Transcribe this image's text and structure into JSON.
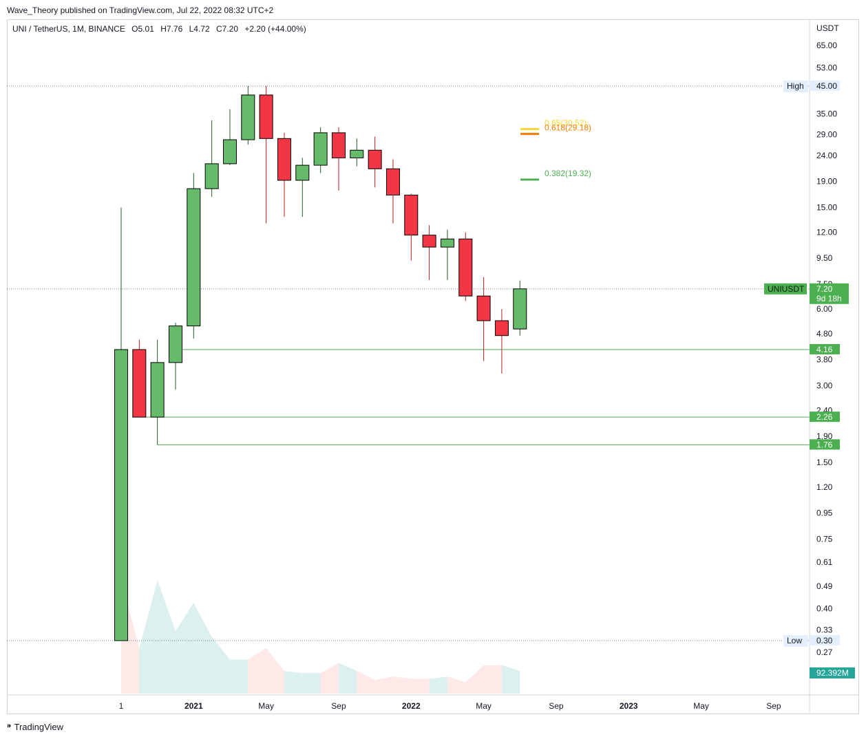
{
  "attribution": "Wave_Theory published on TradingView.com, Jul 22, 2022 08:32 UTC+2",
  "legend": {
    "symbol": "UNI / TetherUS, 1M, BINANCE",
    "open": "O5.01",
    "high": "H7.76",
    "low": "L4.72",
    "close": "C7.20",
    "change": "+2.20 (+44.00%)"
  },
  "currency": "USDT",
  "footer_brand": "TradingView",
  "colors": {
    "up": "#66bb6a",
    "down": "#f23645",
    "level_line": "#4caf50",
    "fib_065": "#fdd835",
    "fib_0618": "#f57c00",
    "fib_0382": "#4caf50",
    "volume_up": "#b2dfdb",
    "volume_down": "#fccbcd",
    "volume_badge": "#26a69a"
  },
  "chart_data": {
    "type": "candlestick",
    "scale": "log",
    "ylim": [
      0.21,
      80
    ],
    "y_ticks": [
      "65.00",
      "53.00",
      "45.00",
      "35.00",
      "29.00",
      "24.00",
      "19.00",
      "15.00",
      "12.00",
      "9.50",
      "7.50",
      "6.00",
      "4.80",
      "3.80",
      "3.00",
      "2.40",
      "1.90",
      "1.50",
      "1.20",
      "0.95",
      "0.75",
      "0.61",
      "0.49",
      "0.40",
      "0.33",
      "0.27"
    ],
    "x_ticks": [
      {
        "label": "1",
        "month_index": 0
      },
      {
        "label": "2021",
        "month_index": 4,
        "bold": true
      },
      {
        "label": "May",
        "month_index": 8
      },
      {
        "label": "Sep",
        "month_index": 12
      },
      {
        "label": "2022",
        "month_index": 16,
        "bold": true
      },
      {
        "label": "May",
        "month_index": 20
      },
      {
        "label": "Sep",
        "month_index": 24
      },
      {
        "label": "2023",
        "month_index": 28,
        "bold": true
      },
      {
        "label": "May",
        "month_index": 32
      },
      {
        "label": "Sep",
        "month_index": 36
      }
    ],
    "candles": [
      {
        "month": "2020-09",
        "open": 0.3,
        "high": 15.0,
        "low": 0.3,
        "close": 4.16
      },
      {
        "month": "2020-10",
        "open": 4.16,
        "high": 4.55,
        "low": 2.26,
        "close": 2.26
      },
      {
        "month": "2020-11",
        "open": 2.26,
        "high": 4.55,
        "low": 1.76,
        "close": 3.7
      },
      {
        "month": "2020-12",
        "open": 3.7,
        "high": 5.3,
        "low": 2.9,
        "close": 5.15
      },
      {
        "month": "2021-01",
        "open": 5.15,
        "high": 20.5,
        "low": 4.6,
        "close": 17.8
      },
      {
        "month": "2021-02",
        "open": 17.8,
        "high": 33.0,
        "low": 16.5,
        "close": 22.3
      },
      {
        "month": "2021-03",
        "open": 22.3,
        "high": 36.5,
        "low": 22.0,
        "close": 27.7
      },
      {
        "month": "2021-04",
        "open": 27.7,
        "high": 45.0,
        "low": 26.5,
        "close": 41.5
      },
      {
        "month": "2021-05",
        "open": 41.5,
        "high": 45.0,
        "low": 13.0,
        "close": 28.0
      },
      {
        "month": "2021-06",
        "open": 28.0,
        "high": 29.5,
        "low": 13.8,
        "close": 19.2
      },
      {
        "month": "2021-07",
        "open": 19.2,
        "high": 23.5,
        "low": 13.8,
        "close": 22.0
      },
      {
        "month": "2021-08",
        "open": 22.0,
        "high": 31.0,
        "low": 20.5,
        "close": 29.5
      },
      {
        "month": "2021-09",
        "open": 29.5,
        "high": 31.0,
        "low": 17.5,
        "close": 23.5
      },
      {
        "month": "2021-10",
        "open": 23.5,
        "high": 28.0,
        "low": 21.8,
        "close": 25.2
      },
      {
        "month": "2021-11",
        "open": 25.2,
        "high": 28.5,
        "low": 18.0,
        "close": 21.3
      },
      {
        "month": "2021-12",
        "open": 21.3,
        "high": 23.2,
        "low": 13.0,
        "close": 16.8
      },
      {
        "month": "2022-01",
        "open": 16.8,
        "high": 17.0,
        "low": 9.3,
        "close": 11.7
      },
      {
        "month": "2022-02",
        "open": 11.7,
        "high": 12.8,
        "low": 7.8,
        "close": 10.5
      },
      {
        "month": "2022-03",
        "open": 10.5,
        "high": 12.3,
        "low": 7.8,
        "close": 11.3
      },
      {
        "month": "2022-04",
        "open": 11.3,
        "high": 12.0,
        "low": 6.45,
        "close": 6.75
      },
      {
        "month": "2022-05",
        "open": 6.75,
        "high": 8.0,
        "low": 3.75,
        "close": 5.4
      },
      {
        "month": "2022-06",
        "open": 5.4,
        "high": 6.0,
        "low": 3.35,
        "close": 4.72
      },
      {
        "month": "2022-07",
        "open": 5.01,
        "high": 7.76,
        "low": 4.72,
        "close": 7.2
      }
    ],
    "volume_shown": "92.392M",
    "volume": [
      100,
      40,
      100,
      55,
      80,
      50,
      30,
      30,
      40,
      20,
      18,
      18,
      27,
      20,
      12,
      15,
      13,
      13,
      15,
      10,
      25,
      25,
      20
    ],
    "horizontal_levels": [
      {
        "label": "High",
        "value": "45.00",
        "style": "dotted"
      },
      {
        "label": "Low",
        "value": "0.30",
        "style": "dotted"
      },
      {
        "label": "UNIUSDT",
        "value": "7.20",
        "extra": "9d 18h",
        "style": "dotted"
      },
      {
        "label": "",
        "value": "4.16",
        "style": "solid"
      },
      {
        "label": "",
        "value": "2.26",
        "style": "solid"
      },
      {
        "label": "",
        "value": "1.76",
        "style": "solid"
      }
    ],
    "fib_levels": [
      {
        "label": "0.65(30.52)",
        "value": 30.52
      },
      {
        "label": "0.618(29.18)",
        "value": 29.18
      },
      {
        "label": "0.382(19.32)",
        "value": 19.32
      }
    ]
  }
}
